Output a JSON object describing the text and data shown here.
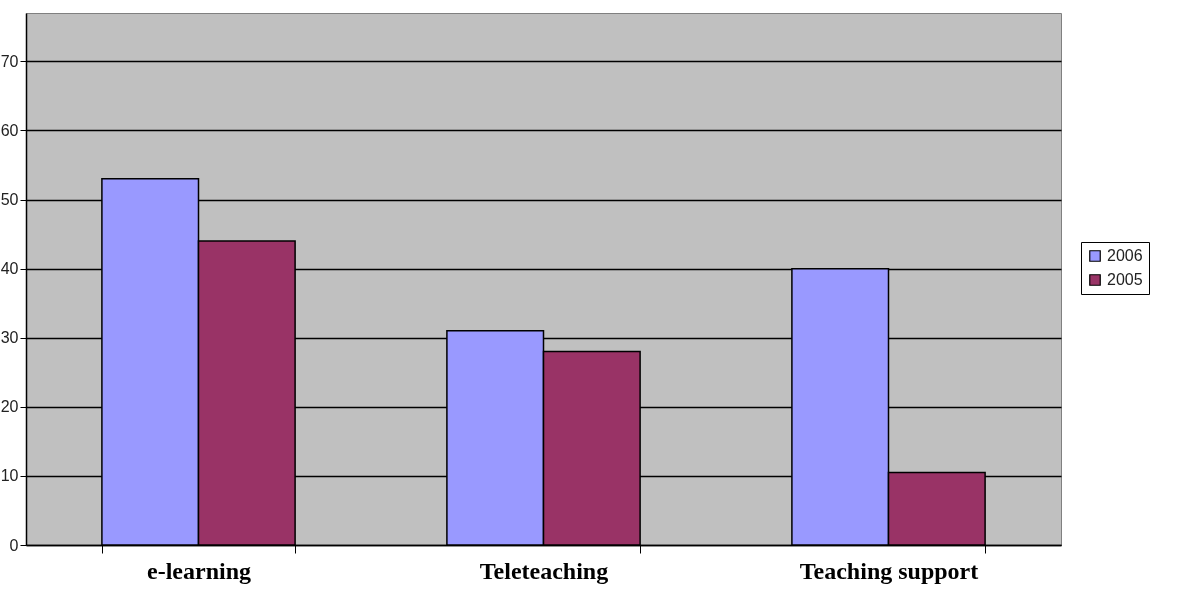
{
  "chart_data": {
    "type": "bar",
    "categories": [
      "e-learning",
      "Teleteaching",
      "Teaching support"
    ],
    "series": [
      {
        "name": "2006",
        "color": "#9999ff",
        "values": [
          53,
          31,
          40
        ]
      },
      {
        "name": "2005",
        "color": "#993366",
        "values": [
          44,
          28,
          10.5
        ]
      }
    ],
    "ylim": [
      0,
      77
    ],
    "yticks": [
      0,
      10,
      20,
      30,
      40,
      50,
      60,
      70
    ],
    "grid": "y",
    "legend": "right"
  }
}
